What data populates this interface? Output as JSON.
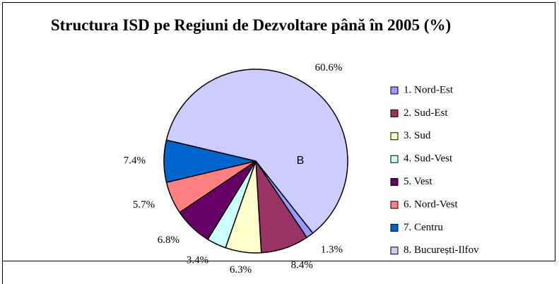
{
  "chart_data": {
    "type": "pie",
    "title": "Structura ISD pe Regiuni de Dezvoltare până în 2005 (%)",
    "categories": [
      "1. Nord-Est",
      "2. Sud-Est",
      "3. Sud",
      "4. Sud-Vest",
      "5. Vest",
      "6. Nord-Vest",
      "7. Centru",
      "8. București-Ilfov"
    ],
    "values": [
      1.3,
      8.4,
      6.3,
      3.4,
      6.8,
      5.7,
      7.4,
      60.6
    ],
    "value_labels": [
      "1.3%",
      "8.4%",
      "6.3%",
      "3.4%",
      "6.8%",
      "5.7%",
      "7.4%",
      "60.6%"
    ],
    "colors": [
      "#9999FF",
      "#993366",
      "#FFFFCC",
      "#CCFFFF",
      "#660066",
      "#FF8080",
      "#0066CC",
      "#CCCCFF"
    ],
    "annotation": "B",
    "legend": "right"
  }
}
